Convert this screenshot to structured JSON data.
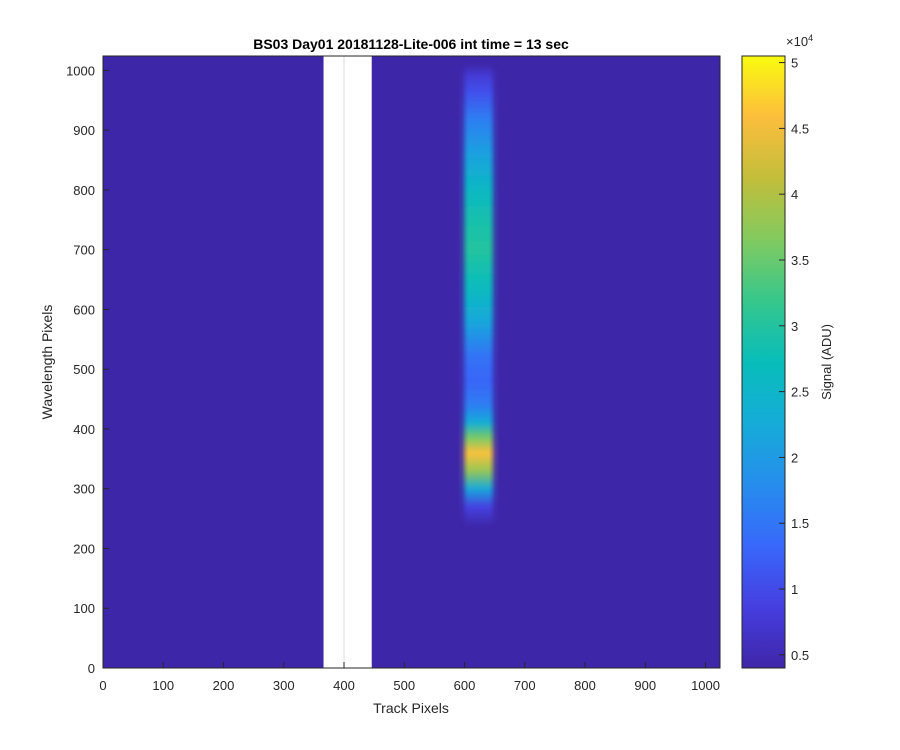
{
  "chart_data": {
    "type": "heatmap",
    "title": "BS03 Day01 20181128-Lite-006 int time = 13 sec",
    "xlabel": "Track Pixels",
    "ylabel": "Wavelength Pixels",
    "xlim": [
      0,
      1024
    ],
    "ylim": [
      0,
      1024
    ],
    "xticks": [
      "0",
      "100",
      "200",
      "300",
      "400",
      "500",
      "600",
      "700",
      "800",
      "900",
      "1000"
    ],
    "yticks": [
      "0",
      "100",
      "200",
      "300",
      "400",
      "500",
      "600",
      "700",
      "800",
      "900",
      "1000"
    ],
    "colorbar": {
      "label": "Signal (ADU)",
      "exponent_label": "×10",
      "exponent_power": "4",
      "range": [
        0.4,
        5.05
      ],
      "ticks": [
        "0.5",
        "1",
        "1.5",
        "2",
        "2.5",
        "3",
        "3.5",
        "4",
        "4.5",
        "5"
      ],
      "colormap": "parula"
    },
    "background_level": 0.45,
    "masked_columns": [
      366,
      446
    ],
    "spot": {
      "x_range": [
        597,
        650
      ],
      "y_range": [
        240,
        1008
      ],
      "profile": [
        {
          "y": 240,
          "v": 0.45
        },
        {
          "y": 270,
          "v": 0.9
        },
        {
          "y": 300,
          "v": 2.2
        },
        {
          "y": 330,
          "v": 3.8
        },
        {
          "y": 360,
          "v": 4.6
        },
        {
          "y": 385,
          "v": 3.6
        },
        {
          "y": 410,
          "v": 2.3
        },
        {
          "y": 440,
          "v": 1.6
        },
        {
          "y": 480,
          "v": 1.3
        },
        {
          "y": 520,
          "v": 1.45
        },
        {
          "y": 580,
          "v": 2.2
        },
        {
          "y": 640,
          "v": 2.7
        },
        {
          "y": 700,
          "v": 3.0
        },
        {
          "y": 740,
          "v": 2.9
        },
        {
          "y": 800,
          "v": 2.6
        },
        {
          "y": 860,
          "v": 2.1
        },
        {
          "y": 920,
          "v": 1.6
        },
        {
          "y": 960,
          "v": 1.1
        },
        {
          "y": 990,
          "v": 0.8
        },
        {
          "y": 1008,
          "v": 0.45
        }
      ]
    },
    "grid": false
  },
  "colors": {
    "background": "#3e26a8",
    "mask": "#ffffff",
    "axis": "#262626"
  }
}
